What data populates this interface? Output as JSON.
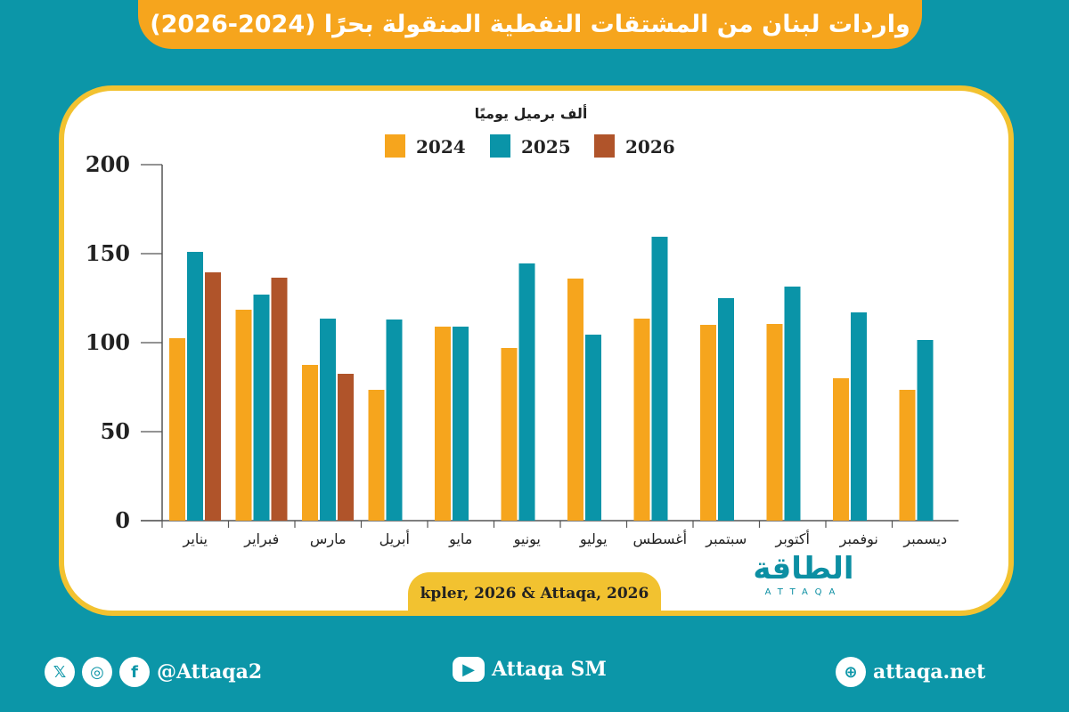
{
  "title": "واردات لبنان من المشتقات النفطية المنقولة بحرًا (2024-2026)",
  "chart_data": {
    "type": "bar",
    "title": "واردات لبنان من المشتقات النفطية المنقولة بحرًا (2024-2026)",
    "unit_label": "ألف برميل يوميًا",
    "categories": [
      "يناير",
      "فبراير",
      "مارس",
      "أبريل",
      "مايو",
      "يونيو",
      "يوليو",
      "أغسطس",
      "سبتمبر",
      "أكتوبر",
      "نوفمبر",
      "ديسمبر"
    ],
    "series": [
      {
        "name": "2024",
        "color": "#f6a51d",
        "values": [
          102.5,
          118.5,
          87.5,
          73.5,
          109,
          97,
          136,
          113.5,
          110,
          110.5,
          80,
          73.5
        ]
      },
      {
        "name": "2025",
        "color": "#0a94a8",
        "values": [
          151,
          127,
          113.5,
          113,
          109,
          144.5,
          104.5,
          159.5,
          125,
          131.5,
          117,
          101.5
        ]
      },
      {
        "name": "2026",
        "color": "#b0542a",
        "values": [
          139.5,
          136.5,
          82.5,
          null,
          null,
          null,
          null,
          null,
          null,
          null,
          null,
          null
        ]
      }
    ],
    "yticks": [
      "0",
      "50",
      "100",
      "150",
      "200"
    ],
    "ylim": [
      0,
      200
    ],
    "grid": false,
    "legend": "top-center"
  },
  "source": "kpler, 2026 & Attaqa, 2026",
  "logo": {
    "ar": "الطاقة",
    "en": "ATTAQA"
  },
  "footer": {
    "social_handle": "@Attaqa2",
    "youtube": "Attaqa SM",
    "website": "attaqa.net",
    "icons": [
      "x-icon",
      "instagram-icon",
      "facebook-icon",
      "youtube-icon",
      "globe-icon"
    ]
  }
}
